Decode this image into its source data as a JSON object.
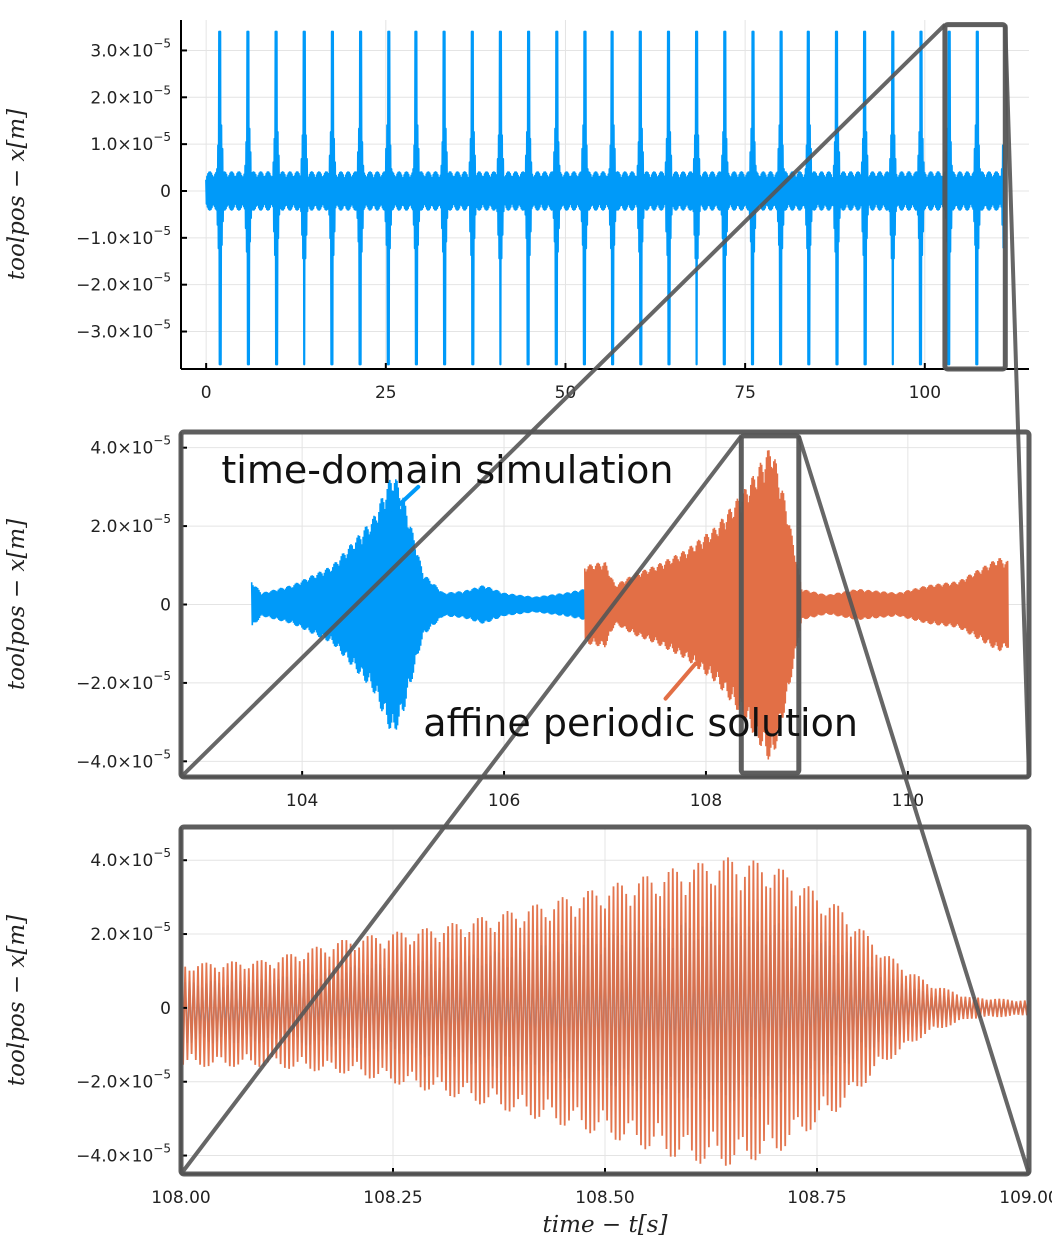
{
  "colors": {
    "time_domain": "#009af9",
    "affine": "#e26f46",
    "zoom": "#555555"
  },
  "chart_data": [
    {
      "type": "line",
      "panel": "top",
      "xlabel": "",
      "ylabel": "toolpos − x[m]",
      "xlim": [
        -3.5,
        114.5
      ],
      "ylim": [
        -3.8e-05,
        3.65e-05
      ],
      "xticks": [
        0,
        25,
        50,
        75,
        100
      ],
      "xtick_labels": [
        "0",
        "25",
        "50",
        "75",
        "100"
      ],
      "yticks": [
        -3e-05,
        -2e-05,
        -1e-05,
        0,
        1e-05,
        2e-05,
        3e-05
      ],
      "ytick_labels": [
        "−3.0×10",
        "−2.0×10",
        "−1.0×10",
        "0",
        "1.0×10",
        "2.0×10",
        "3.0×10"
      ],
      "ytick_exps": [
        "−5",
        "−5",
        "−5",
        "",
        "−5",
        "−5",
        "−5"
      ],
      "grid": true,
      "series": [
        {
          "name": "time-domain simulation",
          "color": "#009af9",
          "x_range": [
            0,
            111
          ],
          "period": 3.9,
          "burst_peak": 3.4e-05,
          "burst_trough": -3.7e-05,
          "baseline": 4e-06
        }
      ],
      "zoom_window": {
        "x": [
          102.8,
          111.2
        ],
        "y": [
          -3.8e-05,
          3.55e-05
        ]
      }
    },
    {
      "type": "line",
      "panel": "middle",
      "xlabel": "",
      "ylabel": "toolpos − x[m]",
      "xlim": [
        102.8,
        111.2
      ],
      "ylim": [
        -4.4e-05,
        4.4e-05
      ],
      "xticks": [
        104,
        106,
        108,
        110
      ],
      "xtick_labels": [
        "104",
        "106",
        "108",
        "110"
      ],
      "yticks": [
        -4e-05,
        -2e-05,
        0,
        2e-05,
        4e-05
      ],
      "ytick_labels": [
        "−4.0×10",
        "−2.0×10",
        "0",
        "2.0×10",
        "4.0×10"
      ],
      "ytick_exps": [
        "−5",
        "−5",
        "",
        "−5",
        "−5"
      ],
      "grid": true,
      "series": [
        {
          "name": "time-domain simulation",
          "color": "#009af9",
          "x_range": [
            103.5,
            106.8
          ],
          "envelope": [
            [
              103.5,
              6e-06
            ],
            [
              103.6,
              3e-06
            ],
            [
              103.9,
              5e-06
            ],
            [
              104.3,
              1e-05
            ],
            [
              104.7,
              2.2e-05
            ],
            [
              104.9,
              3.4e-05
            ],
            [
              105.0,
              2.8e-05
            ],
            [
              105.2,
              8e-06
            ],
            [
              105.4,
              3e-06
            ],
            [
              105.6,
              3.5e-06
            ],
            [
              105.8,
              5e-06
            ],
            [
              106.0,
              3e-06
            ],
            [
              106.3,
              2e-06
            ],
            [
              106.6,
              3e-06
            ],
            [
              106.8,
              4e-06
            ]
          ]
        },
        {
          "name": "affine periodic solution",
          "color": "#e26f46",
          "x_range": [
            106.8,
            111.0
          ],
          "envelope": [
            [
              106.8,
              1e-05
            ],
            [
              107.0,
              1.1e-05
            ],
            [
              107.1,
              5e-06
            ],
            [
              107.3,
              8e-06
            ],
            [
              107.5,
              1e-05
            ],
            [
              107.8,
              1.4e-05
            ],
            [
              108.1,
              2e-05
            ],
            [
              108.4,
              3e-05
            ],
            [
              108.65,
              4.1e-05
            ],
            [
              108.8,
              2.5e-05
            ],
            [
              108.95,
              4e-06
            ],
            [
              109.2,
              2.5e-06
            ],
            [
              109.5,
              4e-06
            ],
            [
              109.9,
              3e-06
            ],
            [
              110.2,
              5e-06
            ],
            [
              110.5,
              6e-06
            ],
            [
              110.7,
              9e-06
            ],
            [
              110.9,
              1.2e-05
            ],
            [
              111.0,
              1.1e-05
            ]
          ]
        }
      ],
      "annotations": [
        {
          "text": "time-domain simulation",
          "x": 103.2,
          "y": 3.4e-05,
          "arrow_from": [
            105.15,
            3e-05
          ],
          "arrow_to": [
            104.9,
            2.4e-05
          ]
        },
        {
          "text": "affine periodic solution",
          "x": 105.2,
          "y": -3.05e-05,
          "arrow_from": [
            107.9,
            -1.5e-05
          ],
          "arrow_to": [
            107.6,
            -2.4e-05
          ]
        }
      ],
      "zoom_window": {
        "x": [
          108.35,
          108.92
        ],
        "y": [
          -4.3e-05,
          4.3e-05
        ]
      }
    },
    {
      "type": "line",
      "panel": "bottom",
      "xlabel": "time − t[s]",
      "ylabel": "toolpos − x[m]",
      "xlim": [
        108.0,
        109.0
      ],
      "ylim": [
        -4.5e-05,
        4.9e-05
      ],
      "xticks": [
        108.0,
        108.25,
        108.5,
        108.75,
        109.0
      ],
      "xtick_labels": [
        "108.00",
        "108.25",
        "108.50",
        "108.75",
        "109.00"
      ],
      "yticks": [
        -4e-05,
        -2e-05,
        0,
        2e-05,
        4e-05
      ],
      "ytick_labels": [
        "−4.0×10",
        "−2.0×10",
        "0",
        "2.0×10",
        "4.0×10"
      ],
      "ytick_exps": [
        "−5",
        "−5",
        "",
        "−5",
        "−5"
      ],
      "grid": true,
      "series": [
        {
          "name": "time-domain simulation",
          "color": "#009af9",
          "envelope_scale": 0.6
        },
        {
          "name": "affine periodic solution",
          "color": "#e26f46",
          "envelope": [
            [
              108.0,
              1.2e-05
            ],
            [
              108.1,
              1.3e-05
            ],
            [
              108.2,
              1.9e-05
            ],
            [
              108.3,
              2.2e-05
            ],
            [
              108.4,
              2.7e-05
            ],
            [
              108.5,
              3.3e-05
            ],
            [
              108.6,
              3.9e-05
            ],
            [
              108.65,
              4.1e-05
            ],
            [
              108.7,
              3.9e-05
            ],
            [
              108.78,
              2.7e-05
            ],
            [
              108.83,
              1.5e-05
            ],
            [
              108.88,
              7e-06
            ],
            [
              108.93,
              3e-06
            ],
            [
              109.0,
              2e-06
            ]
          ],
          "trough": [
            [
              108.0,
              -1.6e-05
            ],
            [
              108.1,
              -1.6e-05
            ],
            [
              108.2,
              -1.8e-05
            ],
            [
              108.3,
              -2.3e-05
            ],
            [
              108.4,
              -2.9e-05
            ],
            [
              108.5,
              -3.5e-05
            ],
            [
              108.6,
              -4.2e-05
            ],
            [
              108.65,
              -4.3e-05
            ],
            [
              108.7,
              -4e-05
            ],
            [
              108.78,
              -2.7e-05
            ],
            [
              108.83,
              -1.5e-05
            ],
            [
              108.88,
              -7e-06
            ],
            [
              108.93,
              -3e-06
            ],
            [
              109.0,
              -2e-06
            ]
          ]
        }
      ]
    }
  ]
}
